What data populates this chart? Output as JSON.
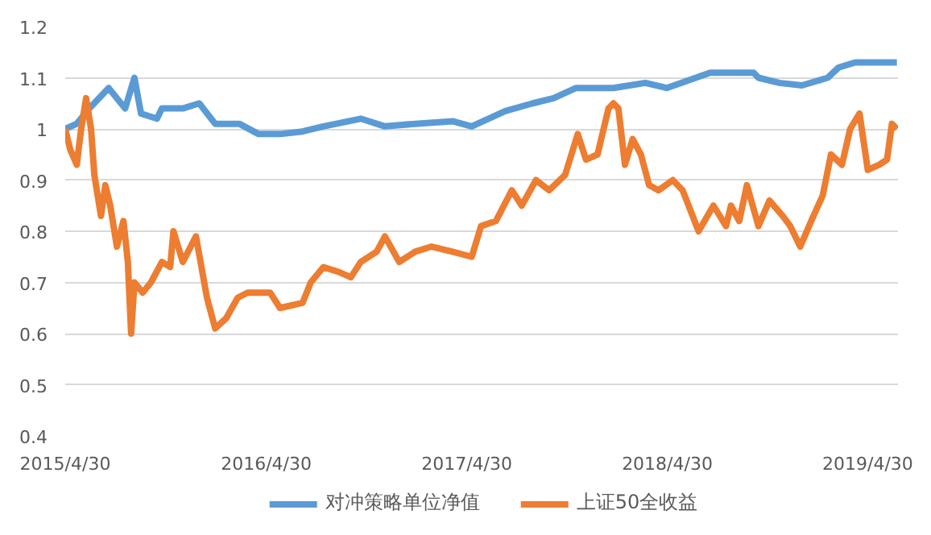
{
  "chart_data": {
    "type": "line",
    "xlim": [
      "2015-04-30",
      "2019-06-24"
    ],
    "xticks": [
      {
        "value": "2015-04-30",
        "label": "2015/4/30"
      },
      {
        "value": "2016-04-30",
        "label": "2016/4/30"
      },
      {
        "value": "2017-04-30",
        "label": "2017/4/30"
      },
      {
        "value": "2018-04-30",
        "label": "2018/4/30"
      },
      {
        "value": "2019-04-30",
        "label": "2019/4/30"
      }
    ],
    "ylim": [
      0.4,
      1.2
    ],
    "yticks": [
      0.4,
      0.5,
      0.6,
      0.7,
      0.8,
      0.9,
      1,
      1.1,
      1.2
    ],
    "grid": "y",
    "legend": "bottom",
    "marker": "none",
    "line_style": "solid",
    "series": [
      {
        "name": "对冲策略单位净值",
        "color": "#5b9bd5",
        "x": [
          "2015-04-30",
          "2015-05-21",
          "2015-06-13",
          "2015-07-18",
          "2015-08-17",
          "2015-09-03",
          "2015-09-15",
          "2015-10-14",
          "2015-10-23",
          "2015-11-30",
          "2015-12-30",
          "2016-01-28",
          "2016-03-12",
          "2016-04-16",
          "2016-05-25",
          "2016-07-05",
          "2016-08-12",
          "2016-10-19",
          "2016-12-02",
          "2017-01-26",
          "2017-04-04",
          "2017-05-09",
          "2017-07-09",
          "2017-08-28",
          "2017-10-05",
          "2017-11-15",
          "2018-01-22",
          "2018-03-21",
          "2018-04-29",
          "2018-07-17",
          "2018-08-24",
          "2018-10-04",
          "2018-10-13",
          "2018-11-20",
          "2018-12-31",
          "2019-02-16",
          "2019-03-08",
          "2019-04-07",
          "2019-06-22"
        ],
        "values": [
          1.0,
          1.01,
          1.04,
          1.08,
          1.04,
          1.1,
          1.03,
          1.02,
          1.04,
          1.04,
          1.05,
          1.01,
          1.01,
          0.99,
          0.99,
          0.995,
          1.005,
          1.02,
          1.005,
          1.01,
          1.015,
          1.005,
          1.035,
          1.05,
          1.06,
          1.08,
          1.08,
          1.09,
          1.08,
          1.11,
          1.11,
          1.11,
          1.1,
          1.09,
          1.085,
          1.1,
          1.12,
          1.13,
          1.13
        ]
      },
      {
        "name": "上证50全收益",
        "color": "#ed7d31",
        "x": [
          "2015-04-30",
          "2015-05-09",
          "2015-05-21",
          "2015-05-29",
          "2015-06-07",
          "2015-06-16",
          "2015-06-22",
          "2015-07-04",
          "2015-07-12",
          "2015-07-21",
          "2015-08-02",
          "2015-08-14",
          "2015-08-22",
          "2015-08-28",
          "2015-09-03",
          "2015-09-18",
          "2015-10-03",
          "2015-10-23",
          "2015-11-07",
          "2015-11-13",
          "2015-11-30",
          "2015-12-24",
          "2016-01-13",
          "2016-01-28",
          "2016-02-17",
          "2016-03-09",
          "2016-03-27",
          "2016-05-07",
          "2016-05-25",
          "2016-07-05",
          "2016-07-20",
          "2016-08-12",
          "2016-09-10",
          "2016-10-01",
          "2016-10-19",
          "2016-11-17",
          "2016-12-02",
          "2016-12-28",
          "2017-01-26",
          "2017-02-25",
          "2017-04-04",
          "2017-05-09",
          "2017-05-26",
          "2017-06-22",
          "2017-07-21",
          "2017-08-08",
          "2017-09-03",
          "2017-09-27",
          "2017-10-26",
          "2017-11-18",
          "2017-12-03",
          "2017-12-24",
          "2018-01-13",
          "2018-01-22",
          "2018-01-31",
          "2018-02-12",
          "2018-02-26",
          "2018-03-13",
          "2018-03-28",
          "2018-04-14",
          "2018-05-10",
          "2018-05-28",
          "2018-06-26",
          "2018-07-23",
          "2018-08-15",
          "2018-08-24",
          "2018-09-08",
          "2018-09-22",
          "2018-10-13",
          "2018-11-02",
          "2018-11-26",
          "2018-12-10",
          "2018-12-28",
          "2019-01-17",
          "2019-02-07",
          "2019-02-22",
          "2019-03-14",
          "2019-03-29",
          "2019-04-15",
          "2019-04-30",
          "2019-05-21",
          "2019-06-04",
          "2019-06-13",
          "2019-06-22"
        ],
        "values": [
          1.0,
          0.96,
          0.93,
          1.0,
          1.06,
          1.0,
          0.91,
          0.83,
          0.89,
          0.85,
          0.77,
          0.82,
          0.74,
          0.6,
          0.7,
          0.68,
          0.7,
          0.74,
          0.73,
          0.8,
          0.74,
          0.79,
          0.67,
          0.61,
          0.63,
          0.67,
          0.68,
          0.68,
          0.65,
          0.66,
          0.7,
          0.73,
          0.72,
          0.71,
          0.74,
          0.76,
          0.79,
          0.74,
          0.76,
          0.77,
          0.76,
          0.75,
          0.81,
          0.82,
          0.88,
          0.85,
          0.9,
          0.88,
          0.91,
          0.99,
          0.94,
          0.95,
          1.04,
          1.05,
          1.04,
          0.93,
          0.98,
          0.95,
          0.89,
          0.88,
          0.9,
          0.88,
          0.8,
          0.85,
          0.81,
          0.85,
          0.82,
          0.89,
          0.81,
          0.86,
          0.83,
          0.81,
          0.77,
          0.82,
          0.87,
          0.95,
          0.93,
          1.0,
          1.03,
          0.92,
          0.93,
          0.94,
          1.01,
          1.0
        ]
      }
    ]
  }
}
